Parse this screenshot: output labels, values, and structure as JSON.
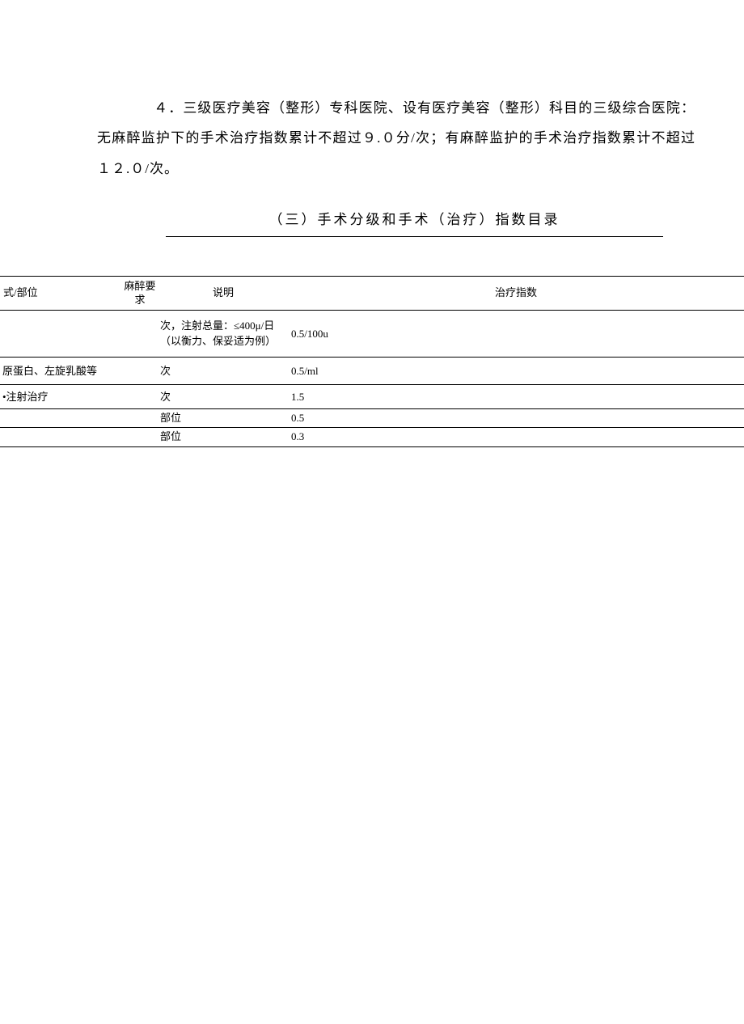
{
  "paragraph": "４．三级医疗美容（整形）专科医院、设有医疗美容（整形）科目的三级综合医院：无麻醉监护下的手术治疗指数累计不超过９.０分/次；有麻醉监护的手术治疗指数累计不超过１２.０/次。",
  "subtitle": "（三）手术分级和手术（治疗）指数目录",
  "table": {
    "headers": {
      "col1": "式/部位",
      "col2": "麻醉要求",
      "col3": "说明",
      "col4": "治疗指数"
    },
    "rows": [
      {
        "c1": "",
        "c2": "",
        "c3": "次，注射总量：≤400μ/日（以衡力、保妥适为例）",
        "c4": "0.5/100u",
        "rowClass": "h-tall"
      },
      {
        "c1": "原蛋白、左旋乳酸等",
        "c2": "",
        "c3": "次",
        "c4": "0.5/ml",
        "rowClass": "h-med"
      },
      {
        "c1": "•注射治疗",
        "c2": "",
        "c3": "次",
        "c4": "1.5",
        "rowClass": "h-med2"
      },
      {
        "c1": "",
        "c2": "",
        "c3": "部位",
        "c4": "0.5",
        "rowClass": "h-small"
      },
      {
        "c1": "",
        "c2": "",
        "c3": "部位",
        "c4": "0.3",
        "rowClass": "h-small"
      }
    ]
  }
}
